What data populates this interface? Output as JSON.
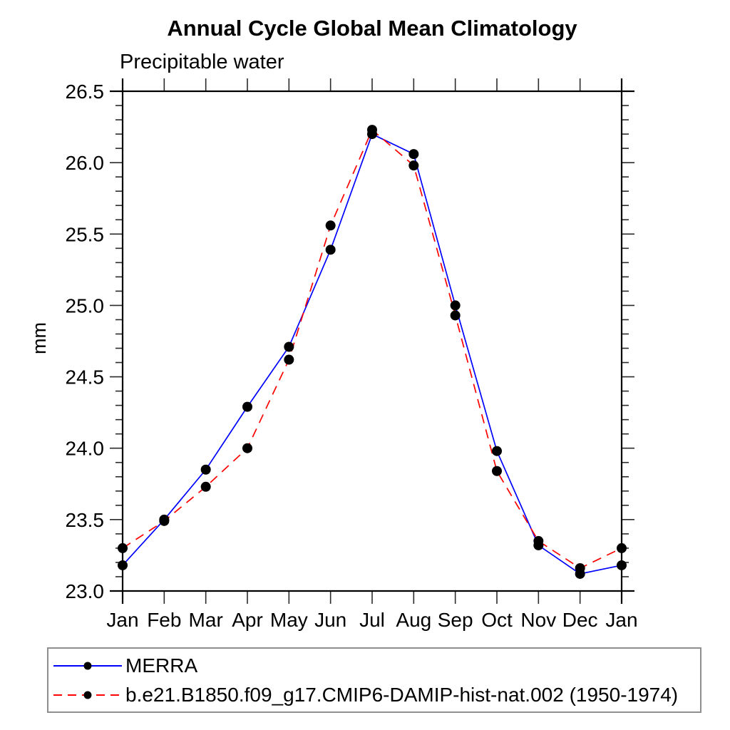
{
  "title": "Annual Cycle Global Mean Climatology",
  "subtitle": "Precipitable water",
  "y_axis_label": "mm",
  "colors": {
    "background": "#ffffff",
    "axis": "#000000",
    "tick": "#2a2a2a",
    "marker": "#000000",
    "merra_line": "#0000ff",
    "model_line": "#ff0000",
    "legend_border": "#8f8f8f"
  },
  "chart_data": {
    "type": "line",
    "title": "Annual Cycle Global Mean Climatology",
    "subtitle": "Precipitable water",
    "xlabel": "",
    "ylabel": "mm",
    "x_categories": [
      "Jan",
      "Feb",
      "Mar",
      "Apr",
      "May",
      "Jun",
      "Jul",
      "Aug",
      "Sep",
      "Oct",
      "Nov",
      "Dec",
      "Jan"
    ],
    "ylim": [
      23.0,
      26.5
    ],
    "ytick_labels": [
      "23.0",
      "23.5",
      "24.0",
      "24.5",
      "25.0",
      "25.5",
      "26.0",
      "26.5"
    ],
    "ytick_major_step": 0.5,
    "ytick_minor_step": 0.1,
    "grid": false,
    "legend_position": "bottom-left-box",
    "series": [
      {
        "name": "MERRA",
        "line_style": "solid",
        "color": "#0000ff",
        "marker": "filled-circle",
        "marker_color": "#000000",
        "values": [
          23.18,
          23.5,
          23.85,
          24.29,
          24.71,
          25.39,
          26.2,
          26.06,
          25.0,
          23.98,
          23.32,
          23.12,
          23.18
        ]
      },
      {
        "name": "b.e21.B1850.f09_g17.CMIP6-DAMIP-hist-nat.002 (1950-1974)",
        "line_style": "dashed",
        "color": "#ff0000",
        "marker": "filled-circle",
        "marker_color": "#000000",
        "values": [
          23.3,
          23.49,
          23.73,
          24.0,
          24.62,
          25.56,
          26.23,
          25.98,
          24.93,
          23.84,
          23.35,
          23.16,
          23.3
        ]
      }
    ]
  }
}
